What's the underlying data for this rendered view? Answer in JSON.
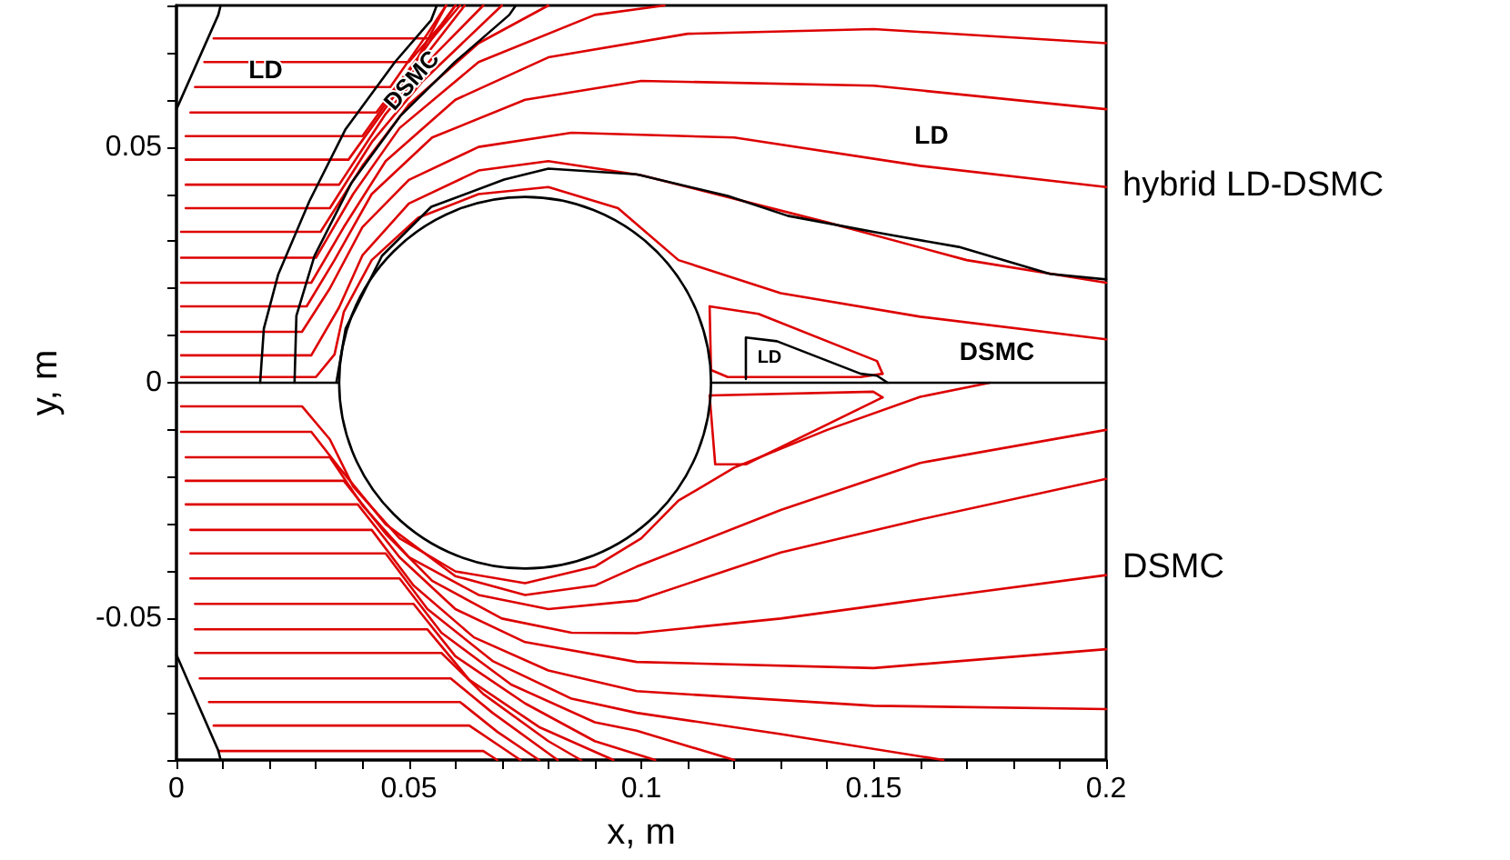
{
  "chart_data": {
    "type": "line",
    "xlabel": "x, m",
    "ylabel": "y, m",
    "grid": false,
    "xlim": [
      0,
      0.2
    ],
    "ylim": [
      -0.08,
      0.08
    ],
    "xticks": [
      0,
      {
        "value": 0.01,
        "label": null
      },
      {
        "value": 0.02,
        "label": null
      },
      {
        "value": 0.03,
        "label": null
      },
      {
        "value": 0.04,
        "label": null
      },
      0.05,
      {
        "value": 0.06,
        "label": null
      },
      {
        "value": 0.07,
        "label": null
      },
      {
        "value": 0.08,
        "label": null
      },
      {
        "value": 0.09,
        "label": null
      },
      0.1,
      {
        "value": 0.11,
        "label": null
      },
      {
        "value": 0.12,
        "label": null
      },
      {
        "value": 0.13,
        "label": null
      },
      {
        "value": 0.14,
        "label": null
      },
      0.15,
      {
        "value": 0.16,
        "label": null
      },
      {
        "value": 0.17,
        "label": null
      },
      {
        "value": 0.18,
        "label": null
      },
      {
        "value": 0.19,
        "label": null
      },
      0.2
    ],
    "yticks": [
      {
        "value": -0.08,
        "label": null
      },
      {
        "value": -0.07,
        "label": null
      },
      {
        "value": -0.06,
        "label": null
      },
      -0.05,
      {
        "value": -0.04,
        "label": null
      },
      {
        "value": -0.03,
        "label": null
      },
      {
        "value": -0.02,
        "label": null
      },
      {
        "value": -0.01,
        "label": null
      },
      0,
      {
        "value": 0.01,
        "label": null
      },
      {
        "value": 0.02,
        "label": null
      },
      {
        "value": 0.03,
        "label": null
      },
      {
        "value": 0.04,
        "label": null
      },
      0.05,
      {
        "value": 0.06,
        "label": null
      },
      {
        "value": 0.07,
        "label": null
      },
      {
        "value": 0.08,
        "label": null
      }
    ],
    "annotations": [
      "LD",
      "DSMC",
      "LD",
      "LD",
      "DSMC",
      "hybrid LD-DSMC",
      "DSMC"
    ],
    "series": [
      {
        "color": "#dd0000",
        "x": [
          0.001,
          0.027,
          0.033,
          0.038,
          0.048,
          0.06,
          0.075,
          0.09,
          0.1,
          0.108,
          0.12,
          0.14,
          0.16,
          0.175
        ],
        "values": [
          -0.005,
          -0.005,
          -0.012,
          -0.022,
          -0.033,
          -0.04,
          -0.0425,
          -0.039,
          -0.033,
          -0.025,
          -0.018,
          -0.01,
          -0.003,
          0
        ]
      },
      {
        "color": "#dd0000",
        "x": [
          0.001,
          0.029,
          0.035,
          0.045,
          0.06,
          0.075,
          0.09,
          0.099,
          0.13,
          0.16,
          0.2
        ],
        "values": [
          -0.0104,
          -0.0104,
          -0.018,
          -0.03,
          -0.041,
          -0.045,
          -0.043,
          -0.039,
          -0.027,
          -0.017,
          -0.01
        ]
      },
      {
        "color": "#dd0000",
        "x": [
          0.002,
          0.033,
          0.04,
          0.05,
          0.065,
          0.08,
          0.099,
          0.13,
          0.16,
          0.2
        ],
        "values": [
          -0.0158,
          -0.0158,
          -0.026,
          -0.037,
          -0.045,
          -0.048,
          -0.0462,
          -0.036,
          -0.029,
          -0.0204
        ]
      },
      {
        "color": "#dd0000",
        "x": [
          0.002,
          0.036,
          0.045,
          0.055,
          0.07,
          0.085,
          0.099,
          0.13,
          0.16,
          0.2
        ],
        "values": [
          -0.0208,
          -0.0208,
          -0.032,
          -0.042,
          -0.05,
          -0.053,
          -0.0531,
          -0.05,
          -0.046,
          -0.0408
        ]
      },
      {
        "color": "#dd0000",
        "x": [
          0.002,
          0.039,
          0.048,
          0.06,
          0.075,
          0.099,
          0.15,
          0.2
        ],
        "values": [
          -0.0258,
          -0.0258,
          -0.037,
          -0.048,
          -0.055,
          -0.0592,
          -0.0605,
          -0.0565
        ]
      },
      {
        "color": "#dd0000",
        "x": [
          0.003,
          0.042,
          0.051,
          0.064,
          0.08,
          0.099,
          0.15,
          0.2
        ],
        "values": [
          -0.0312,
          -0.0312,
          -0.043,
          -0.054,
          -0.061,
          -0.0654,
          -0.0685,
          -0.0692
        ]
      },
      {
        "color": "#dd0000",
        "x": [
          0.003,
          0.045,
          0.054,
          0.068,
          0.085,
          0.099,
          0.13,
          0.165
        ],
        "values": [
          -0.0362,
          -0.0362,
          -0.048,
          -0.059,
          -0.067,
          -0.07,
          -0.0745,
          -0.08
        ]
      },
      {
        "color": "#dd0000",
        "x": [
          0.003,
          0.048,
          0.057,
          0.072,
          0.09,
          0.099,
          0.12
        ],
        "values": [
          -0.0415,
          -0.0415,
          -0.053,
          -0.064,
          -0.072,
          -0.0738,
          -0.08
        ]
      },
      {
        "color": "#dd0000",
        "x": [
          0.004,
          0.051,
          0.06,
          0.075,
          0.09,
          0.103
        ],
        "values": [
          -0.0469,
          -0.0469,
          -0.058,
          -0.068,
          -0.076,
          -0.08
        ]
      },
      {
        "color": "#dd0000",
        "x": [
          0.004,
          0.054,
          0.063,
          0.078,
          0.094
        ],
        "values": [
          -0.0523,
          -0.0523,
          -0.063,
          -0.073,
          -0.08
        ]
      },
      {
        "color": "#dd0000",
        "x": [
          0.004,
          0.057,
          0.066,
          0.08,
          0.087
        ],
        "values": [
          -0.0573,
          -0.0573,
          -0.066,
          -0.076,
          -0.08
        ]
      },
      {
        "color": "#dd0000",
        "x": [
          0.005,
          0.059,
          0.068,
          0.082
        ],
        "values": [
          -0.0627,
          -0.0627,
          -0.07,
          -0.08
        ]
      },
      {
        "color": "#dd0000",
        "x": [
          0.007,
          0.061,
          0.069,
          0.078
        ],
        "values": [
          -0.0677,
          -0.0677,
          -0.074,
          -0.08
        ]
      },
      {
        "color": "#dd0000",
        "x": [
          0.008,
          0.063,
          0.074
        ],
        "values": [
          -0.0727,
          -0.0727,
          -0.08
        ]
      },
      {
        "color": "#dd0000",
        "x": [
          0.009,
          0.066,
          0.069
        ],
        "values": [
          -0.0781,
          -0.0781,
          -0.08
        ]
      },
      {
        "color": "#dd0000",
        "x": [
          0.001,
          0.03,
          0.034,
          0.036,
          0.042,
          0.052,
          0.065,
          0.08,
          0.095,
          0.108,
          0.13,
          0.16,
          0.2
        ],
        "values": [
          0.0012,
          0.0012,
          0.006,
          0.015,
          0.026,
          0.035,
          0.04,
          0.0415,
          0.037,
          0.026,
          0.019,
          0.014,
          0.0092
        ]
      },
      {
        "color": "#dd0000",
        "x": [
          0.001,
          0.029,
          0.035,
          0.04,
          0.05,
          0.065,
          0.08,
          0.1,
          0.14,
          0.17,
          0.2
        ],
        "values": [
          0.0058,
          0.0058,
          0.016,
          0.027,
          0.038,
          0.045,
          0.047,
          0.044,
          0.034,
          0.026,
          0.0212
        ]
      },
      {
        "color": "#dd0000",
        "x": [
          0.001,
          0.027,
          0.033,
          0.04,
          0.05,
          0.065,
          0.085,
          0.12,
          0.16,
          0.2
        ],
        "values": [
          0.0108,
          0.0108,
          0.02,
          0.033,
          0.043,
          0.05,
          0.053,
          0.052,
          0.046,
          0.0415
        ]
      },
      {
        "color": "#dd0000",
        "x": [
          0.001,
          0.028,
          0.034,
          0.042,
          0.055,
          0.075,
          0.1,
          0.15,
          0.2
        ],
        "values": [
          0.0162,
          0.0162,
          0.026,
          0.04,
          0.052,
          0.06,
          0.064,
          0.063,
          0.058
        ]
      },
      {
        "color": "#dd0000",
        "x": [
          0.001,
          0.029,
          0.036,
          0.045,
          0.06,
          0.08,
          0.11,
          0.15,
          0.2
        ],
        "values": [
          0.0212,
          0.0212,
          0.033,
          0.047,
          0.06,
          0.069,
          0.074,
          0.075,
          0.072
        ]
      },
      {
        "color": "#dd0000",
        "x": [
          0.001,
          0.03,
          0.038,
          0.048,
          0.065,
          0.09,
          0.105
        ],
        "values": [
          0.0265,
          0.0265,
          0.04,
          0.054,
          0.068,
          0.078,
          0.08
        ]
      },
      {
        "color": "#dd0000",
        "x": [
          0.001,
          0.031,
          0.04,
          0.05,
          0.065,
          0.08
        ],
        "values": [
          0.032,
          0.032,
          0.046,
          0.059,
          0.072,
          0.08
        ]
      },
      {
        "color": "#dd0000",
        "x": [
          0.002,
          0.033,
          0.042,
          0.053,
          0.07
        ],
        "values": [
          0.037,
          0.037,
          0.051,
          0.064,
          0.08
        ]
      },
      {
        "color": "#dd0000",
        "x": [
          0.002,
          0.035,
          0.045,
          0.056,
          0.066
        ],
        "values": [
          0.042,
          0.042,
          0.057,
          0.07,
          0.08
        ]
      },
      {
        "color": "#dd0000",
        "x": [
          0.002,
          0.037,
          0.047,
          0.062
        ],
        "values": [
          0.0473,
          0.0473,
          0.061,
          0.08
        ]
      },
      {
        "color": "#dd0000",
        "x": [
          0.002,
          0.04,
          0.05,
          0.06
        ],
        "values": [
          0.0523,
          0.0523,
          0.066,
          0.08
        ]
      },
      {
        "color": "#dd0000",
        "x": [
          0.003,
          0.043,
          0.052,
          0.058
        ],
        "values": [
          0.0573,
          0.0573,
          0.069,
          0.08
        ]
      },
      {
        "color": "#dd0000",
        "x": [
          0.004,
          0.046,
          0.054,
          0.058
        ],
        "values": [
          0.0627,
          0.0627,
          0.074,
          0.08
        ]
      },
      {
        "color": "#dd0000",
        "x": [
          0.006,
          0.05,
          0.057,
          0.06
        ],
        "values": [
          0.068,
          0.068,
          0.076,
          0.08
        ]
      },
      {
        "color": "#dd0000",
        "x": [
          0.008,
          0.055,
          0.061
        ],
        "values": [
          0.073,
          0.073,
          0.08
        ]
      },
      {
        "color": "#dd0000",
        "x": [
          0.1147,
          0.1252,
          0.1507,
          0.1519
        ],
        "values": [
          0.0162,
          0.0146,
          0.0046,
          0.0019
        ]
      },
      {
        "color": "#dd0000",
        "x": [
          0.1147,
          0.115,
          0.1186,
          0.1472,
          0.1519
        ],
        "values": [
          0.0162,
          0.0027,
          0.0012,
          0.0012,
          0.0019
        ]
      },
      {
        "color": "#dd0000",
        "x": [
          0.1147,
          0.1499,
          0.1519
        ],
        "values": [
          -0.0027,
          -0.0019,
          -0.0031
        ]
      },
      {
        "color": "#dd0000",
        "x": [
          0.1147,
          0.1159,
          0.1225,
          0.1519
        ],
        "values": [
          -0.0027,
          -0.0173,
          -0.0173,
          -0.0031
        ]
      },
      {
        "color": "#000000",
        "x": [
          0,
          0.035,
          0.075,
          0.115,
          0.2
        ],
        "values": [
          0,
          0,
          null,
          0,
          0
        ]
      },
      {
        "color": "#000000",
        "x": [
          0.018,
          0.0188,
          0.0219,
          0.0286,
          0.0364,
          0.047,
          0.0548,
          0.056
        ],
        "values": [
          0,
          0.0115,
          0.023,
          0.0385,
          0.0538,
          0.068,
          0.0769,
          0.08
        ]
      },
      {
        "color": "#000000",
        "x": [
          0.0254,
          0.0258,
          0.0297,
          0.0376,
          0.0481,
          0.0599,
          0.0716,
          0.073
        ],
        "values": [
          0,
          0.0142,
          0.0269,
          0.0423,
          0.0565,
          0.068,
          0.078,
          0.08
        ]
      },
      {
        "color": "#000000",
        "x": [
          0.0344,
          0.0364,
          0.0442,
          0.0548,
          0.0705,
          0.08,
          0.099,
          0.1186,
          0.1315,
          0.1526,
          0.1683,
          0.1879,
          0.2
        ],
        "values": [
          0,
          0.0115,
          0.0269,
          0.0373,
          0.0431,
          0.0454,
          0.0442,
          0.0396,
          0.0354,
          0.0315,
          0.0288,
          0.0231,
          0.0219
        ]
      },
      {
        "color": "#000000",
        "x": [
          0.1225,
          0.1225,
          0.1292,
          0.1472,
          0.1507,
          0.153
        ],
        "values": [
          0.0008,
          0.0096,
          0.0088,
          0.0019,
          0.0015,
          0
        ]
      },
      {
        "color": "#000000",
        "x": [
          0,
          0.009,
          0.0095
        ],
        "values": [
          0.058,
          0.078,
          0.08
        ]
      },
      {
        "color": "#000000",
        "x": [
          0,
          0.009,
          0.0095
        ],
        "values": [
          -0.0577,
          -0.078,
          -0.08
        ]
      }
    ]
  }
}
